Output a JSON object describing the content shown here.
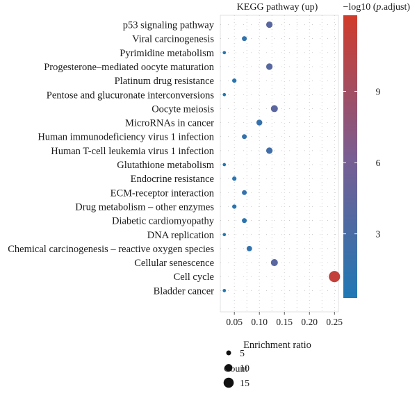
{
  "chart_data": {
    "type": "scatter",
    "title": "KEGG pathway (up)",
    "xlabel": "Enrichment ratio",
    "ylabel": "",
    "xlim": [
      0.022,
      0.258
    ],
    "x_ticks": [
      0.05,
      0.1,
      0.15,
      0.2,
      0.25
    ],
    "x_tick_labels": [
      "0.05",
      "0.10",
      "0.15",
      "0.20",
      "0.25"
    ],
    "grid": "dotted",
    "categories": [
      "p53 signaling pathway",
      "Viral carcinogenesis",
      "Pyrimidine metabolism",
      "Progesterone–mediated oocyte maturation",
      "Platinum drug resistance",
      "Pentose and glucuronate interconversions",
      "Oocyte meiosis",
      "MicroRNAs in cancer",
      "Human immunodeficiency virus 1 infection",
      "Human T-cell leukemia virus 1 infection",
      "Glutathione metabolism",
      "Endocrine resistance",
      "ECM-receptor interaction",
      "Drug metabolism – other enzymes",
      "Diabetic cardiomyopathy",
      "DNA replication",
      "Chemical carcinogenesis – reactive oxygen species",
      "Cellular senescence",
      "Cell cycle",
      "Bladder cancer"
    ],
    "points": [
      {
        "pathway": "p53 signaling pathway",
        "ratio": 0.12,
        "count": 8,
        "neg_log10_padj": 4.0
      },
      {
        "pathway": "Viral carcinogenesis",
        "ratio": 0.07,
        "count": 5,
        "neg_log10_padj": 1.5
      },
      {
        "pathway": "Pyrimidine metabolism",
        "ratio": 0.03,
        "count": 2,
        "neg_log10_padj": 0.5
      },
      {
        "pathway": "Progesterone–mediated oocyte maturation",
        "ratio": 0.12,
        "count": 8,
        "neg_log10_padj": 3.9
      },
      {
        "pathway": "Platinum drug resistance",
        "ratio": 0.05,
        "count": 4,
        "neg_log10_padj": 1.0
      },
      {
        "pathway": "Pentose and glucuronate interconversions",
        "ratio": 0.03,
        "count": 2,
        "neg_log10_padj": 0.5
      },
      {
        "pathway": "Oocyte meiosis",
        "ratio": 0.13,
        "count": 9,
        "neg_log10_padj": 4.2
      },
      {
        "pathway": "MicroRNAs in cancer",
        "ratio": 0.1,
        "count": 7,
        "neg_log10_padj": 1.8
      },
      {
        "pathway": "Human immunodeficiency virus 1 infection",
        "ratio": 0.07,
        "count": 5,
        "neg_log10_padj": 1.6
      },
      {
        "pathway": "Human T-cell leukemia virus 1 infection",
        "ratio": 0.12,
        "count": 8,
        "neg_log10_padj": 2.5
      },
      {
        "pathway": "Glutathione metabolism",
        "ratio": 0.03,
        "count": 2,
        "neg_log10_padj": 0.4
      },
      {
        "pathway": "Endocrine resistance",
        "ratio": 0.05,
        "count": 4,
        "neg_log10_padj": 1.0
      },
      {
        "pathway": "ECM-receptor interaction",
        "ratio": 0.07,
        "count": 5,
        "neg_log10_padj": 1.7
      },
      {
        "pathway": "Drug metabolism – other enzymes",
        "ratio": 0.05,
        "count": 4,
        "neg_log10_padj": 1.0
      },
      {
        "pathway": "Diabetic cardiomyopathy",
        "ratio": 0.07,
        "count": 5,
        "neg_log10_padj": 1.2
      },
      {
        "pathway": "DNA replication",
        "ratio": 0.03,
        "count": 2,
        "neg_log10_padj": 0.4
      },
      {
        "pathway": "Chemical carcinogenesis – reactive oxygen species",
        "ratio": 0.08,
        "count": 6,
        "neg_log10_padj": 1.4
      },
      {
        "pathway": "Cellular senescence",
        "ratio": 0.13,
        "count": 9,
        "neg_log10_padj": 4.0
      },
      {
        "pathway": "Cell cycle",
        "ratio": 0.25,
        "count": 17,
        "neg_log10_padj": 11.3
      },
      {
        "pathway": "Bladder cancer",
        "ratio": 0.03,
        "count": 2,
        "neg_log10_padj": 0.3
      }
    ],
    "colorbar": {
      "title_prefix": "−log10 (",
      "title_italic": "p",
      "title_suffix": ".adjust)",
      "min": 0.3,
      "max": 12.2,
      "ticks": [
        3,
        6,
        9
      ],
      "low_color": "#1f78b4",
      "high_color": "#d13b2a"
    },
    "size_legend": {
      "title": "Count",
      "values": [
        5,
        10,
        15
      ],
      "labels": [
        "5",
        "10",
        "15"
      ]
    }
  }
}
